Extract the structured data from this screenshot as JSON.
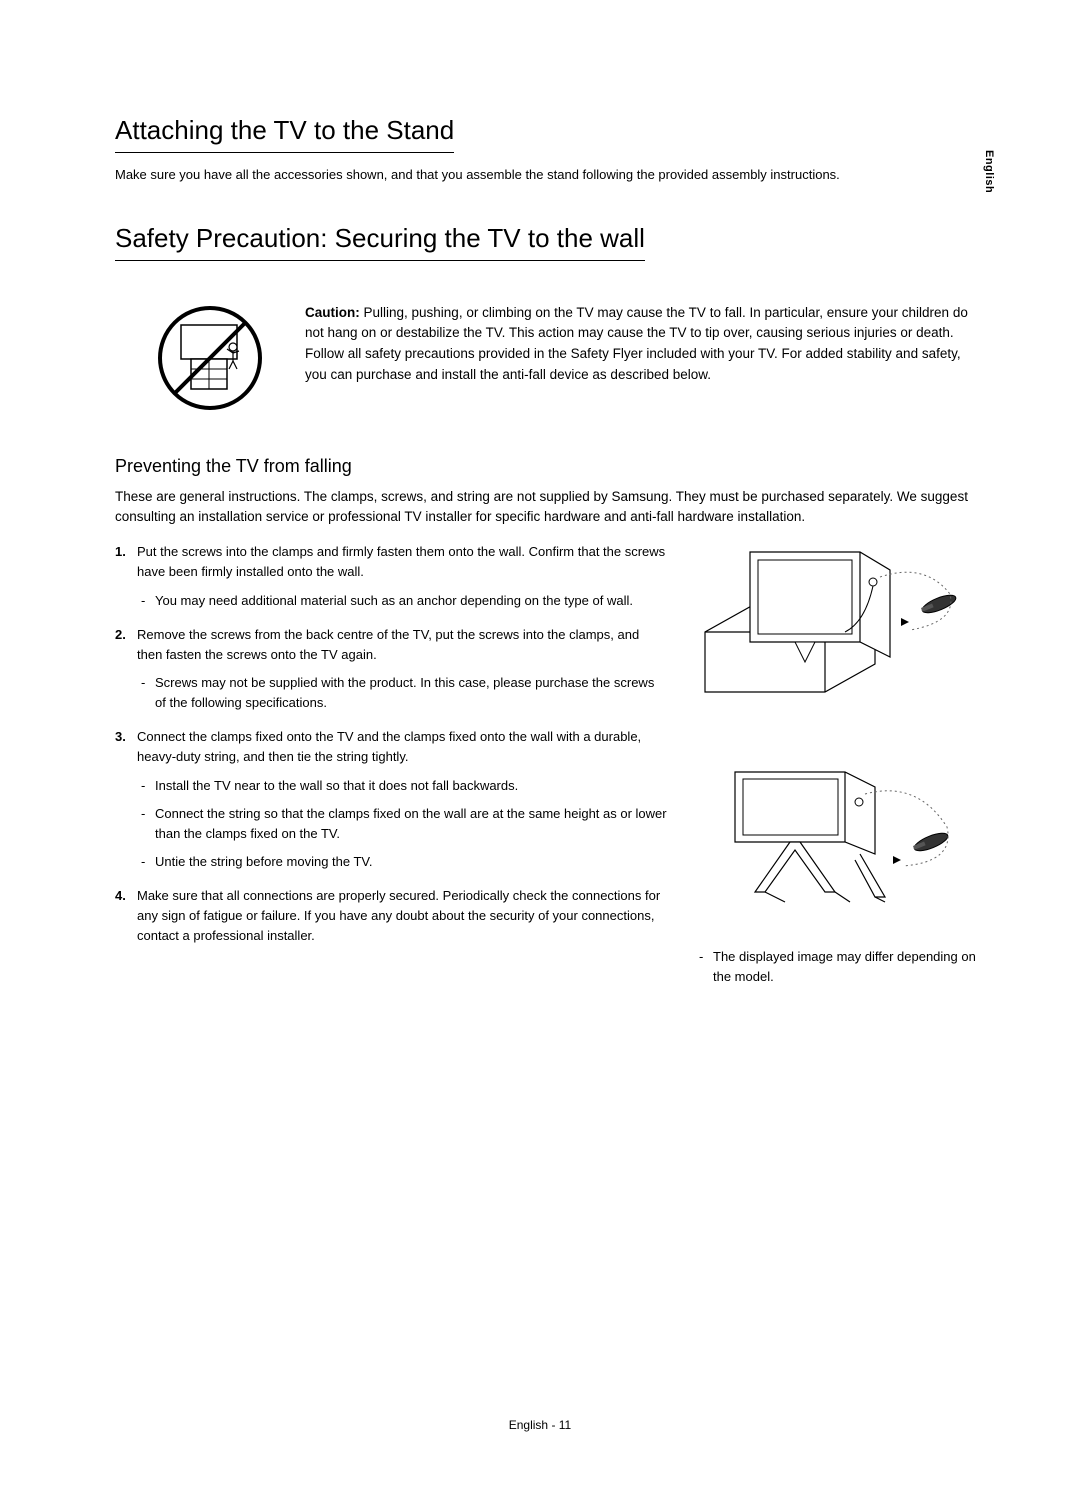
{
  "side_tab": "English",
  "section1": {
    "heading": "Attaching the TV to the Stand",
    "intro": "Make sure you have all the accessories shown, and that you assemble the stand following the provided assembly instructions."
  },
  "section2": {
    "heading": "Safety Precaution: Securing the TV to the wall",
    "caution_label": "Caution:",
    "caution_text": " Pulling, pushing, or climbing on the TV may cause the TV to fall. In particular, ensure your children do not hang on or destabilize the TV. This action may cause the TV to tip over, causing serious injuries or death. Follow all safety precautions provided in the Safety Flyer included with your TV. For added stability and safety, you can purchase and install the anti-fall device as described below."
  },
  "section3": {
    "heading": "Preventing the TV from falling",
    "general": "These are general instructions. The clamps, screws, and string are not supplied by Samsung. They must be purchased separately. We suggest consulting an installation service or professional TV installer for specific hardware and anti-fall hardware installation.",
    "steps": [
      {
        "text": "Put the screws into the clamps and firmly fasten them onto the wall. Confirm that the screws have been firmly installed onto the wall.",
        "sub": [
          "You may need additional material such as an anchor depending on the type of wall."
        ]
      },
      {
        "text": "Remove the screws from the back centre of the TV, put the screws into the clamps, and then fasten the screws onto the TV again.",
        "sub": [
          "Screws may not be supplied with the product. In this case, please purchase the screws of the following specifications."
        ]
      },
      {
        "text": "Connect the clamps fixed onto the TV and the clamps fixed onto the wall with a durable, heavy-duty string, and then tie the string tightly.",
        "sub": [
          "Install the TV near to the wall so that it does not fall backwards.",
          "Connect the string so that the clamps fixed on the wall are at the same height as or lower than the clamps fixed on the TV.",
          "Untie the string before moving the TV."
        ]
      },
      {
        "text": "Make sure that all connections are properly secured. Periodically check the connections for any sign of fatigue or failure. If you have any doubt about the security of your connections, contact a professional installer.",
        "sub": []
      }
    ],
    "fig_caption": "The displayed image may differ depending on the model."
  },
  "footer": "English - 11",
  "colors": {
    "text": "#000000",
    "bg": "#ffffff",
    "stroke": "#000000",
    "dot": "#505050"
  }
}
